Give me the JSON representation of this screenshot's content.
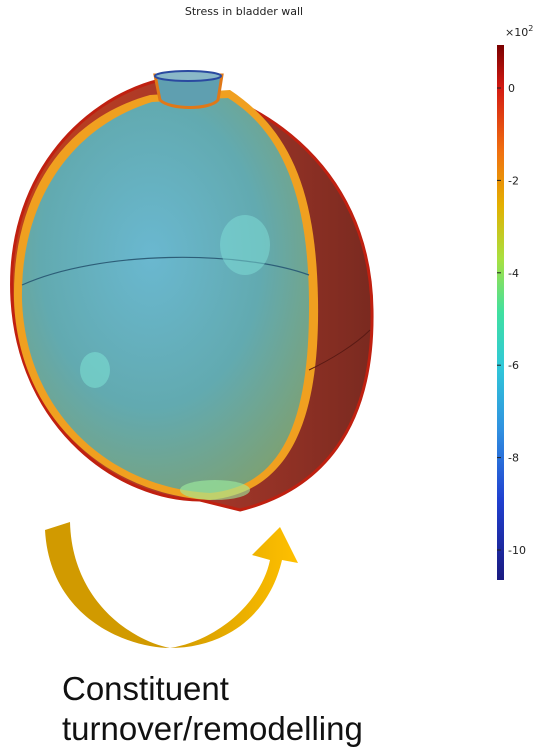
{
  "figure": {
    "title": "Stress in bladder wall",
    "colorbar": {
      "multiplier": {
        "base": "×10",
        "exponent": "2"
      },
      "ticks": [
        0,
        -2,
        -4,
        -6,
        -8,
        -10
      ]
    },
    "caption": {
      "lines": [
        "Constituent",
        "turnover/remodelling"
      ]
    }
  }
}
